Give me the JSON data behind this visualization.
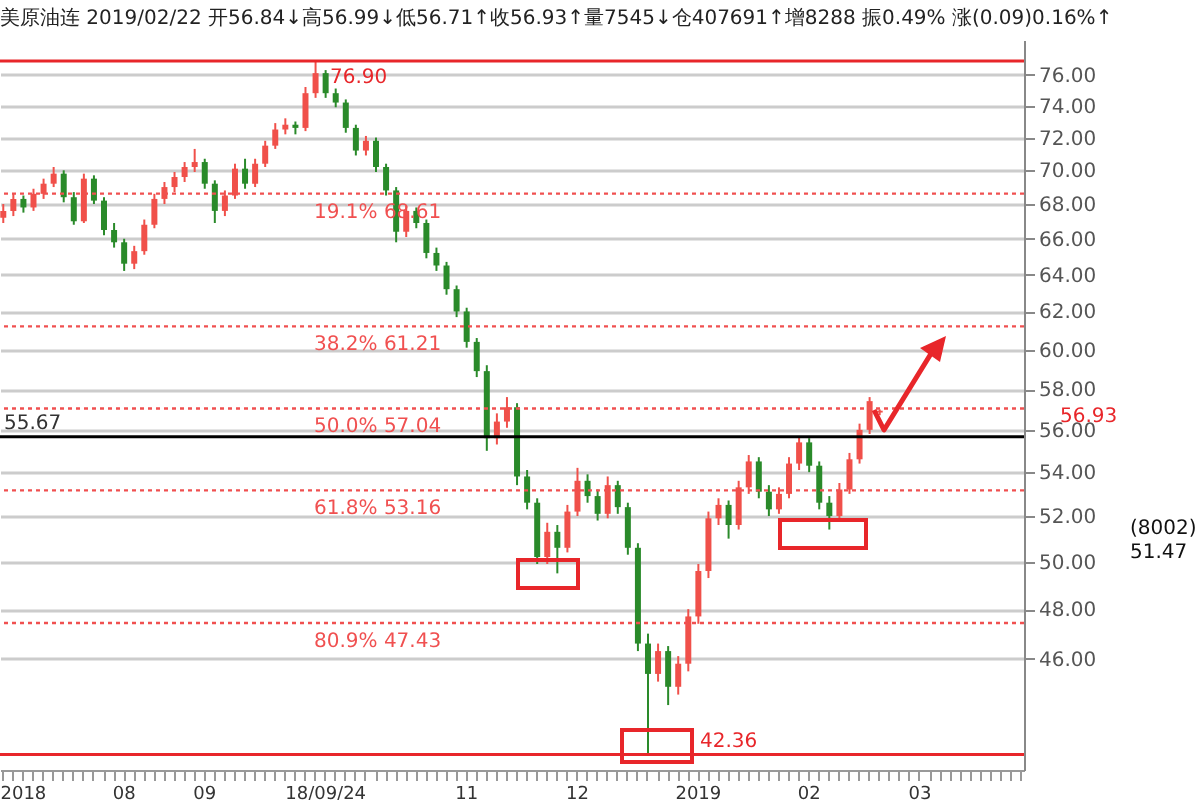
{
  "chart_data": {
    "type": "candlestick",
    "title": "美原油连 2019/02/22 开56.84↓高56.99↓低56.71↑收56.93↑量7545↓仓407691↑增8288 振0.49% 涨(0.09)0.16%↑",
    "categories": [
      null,
      null,
      "2018",
      null,
      null,
      null,
      null,
      null,
      null,
      null,
      null,
      null,
      "08",
      null,
      null,
      null,
      null,
      null,
      null,
      null,
      "09",
      null,
      null,
      null,
      null,
      null,
      null,
      null,
      null,
      null,
      null,
      null,
      "18/09/24",
      null,
      null,
      null,
      null,
      null,
      null,
      null,
      null,
      null,
      null,
      null,
      null,
      null,
      "11",
      null,
      null,
      null,
      null,
      null,
      null,
      null,
      null,
      null,
      null,
      "12",
      null,
      null,
      null,
      null,
      null,
      null,
      null,
      null,
      null,
      null,
      null,
      "2019",
      null,
      null,
      null,
      null,
      null,
      null,
      null,
      null,
      null,
      null,
      "02",
      null,
      null,
      null,
      null,
      null,
      null,
      null,
      null,
      null,
      null,
      "03",
      null,
      null,
      null,
      null,
      null,
      null,
      null,
      null,
      null,
      null
    ],
    "ohlc": [
      [
        67.2,
        68.0,
        66.9,
        67.6
      ],
      [
        67.6,
        68.6,
        67.3,
        68.3
      ],
      [
        68.3,
        68.5,
        67.5,
        67.8
      ],
      [
        67.8,
        68.9,
        67.6,
        68.6
      ],
      [
        68.6,
        69.5,
        68.3,
        69.2
      ],
      [
        69.2,
        70.2,
        69.0,
        69.8
      ],
      [
        69.8,
        70.0,
        68.1,
        68.4
      ],
      [
        68.4,
        68.7,
        66.8,
        67.0
      ],
      [
        67.0,
        69.8,
        66.9,
        69.5
      ],
      [
        69.5,
        69.7,
        68.0,
        68.2
      ],
      [
        68.2,
        68.4,
        66.2,
        66.5
      ],
      [
        66.5,
        66.9,
        65.5,
        65.8
      ],
      [
        65.8,
        66.0,
        64.2,
        64.6
      ],
      [
        64.6,
        65.6,
        64.3,
        65.3
      ],
      [
        65.3,
        67.1,
        65.1,
        66.8
      ],
      [
        66.8,
        68.6,
        66.6,
        68.3
      ],
      [
        68.3,
        69.3,
        68.0,
        69.0
      ],
      [
        69.0,
        69.9,
        68.7,
        69.6
      ],
      [
        69.6,
        70.5,
        69.3,
        70.2
      ],
      [
        70.2,
        71.3,
        69.9,
        70.5
      ],
      [
        70.5,
        70.7,
        68.9,
        69.2
      ],
      [
        69.2,
        69.4,
        66.9,
        67.6
      ],
      [
        67.6,
        68.8,
        67.3,
        68.5
      ],
      [
        68.5,
        70.4,
        68.3,
        70.1
      ],
      [
        70.1,
        70.7,
        68.9,
        69.2
      ],
      [
        69.2,
        70.7,
        69.0,
        70.4
      ],
      [
        70.4,
        71.8,
        70.2,
        71.5
      ],
      [
        71.5,
        72.9,
        71.3,
        72.5
      ],
      [
        72.5,
        73.2,
        72.2,
        72.8
      ],
      [
        72.8,
        73.0,
        72.2,
        72.6
      ],
      [
        72.6,
        75.2,
        72.4,
        74.8
      ],
      [
        74.8,
        76.9,
        74.5,
        76.1
      ],
      [
        76.1,
        76.3,
        74.5,
        74.8
      ],
      [
        74.8,
        75.1,
        73.9,
        74.2
      ],
      [
        74.2,
        74.4,
        72.3,
        72.6
      ],
      [
        72.6,
        72.8,
        70.9,
        71.2
      ],
      [
        71.2,
        72.1,
        70.9,
        71.8
      ],
      [
        71.8,
        72.0,
        69.9,
        70.2
      ],
      [
        70.2,
        70.4,
        68.5,
        68.8
      ],
      [
        68.8,
        69.0,
        65.8,
        66.4
      ],
      [
        66.4,
        67.9,
        66.1,
        67.6
      ],
      [
        67.6,
        67.8,
        66.6,
        66.9
      ],
      [
        66.9,
        67.1,
        64.9,
        65.2
      ],
      [
        65.2,
        65.5,
        64.2,
        64.5
      ],
      [
        64.5,
        64.7,
        62.9,
        63.2
      ],
      [
        63.2,
        63.4,
        61.7,
        62.0
      ],
      [
        62.0,
        62.2,
        60.1,
        60.4
      ],
      [
        60.4,
        60.6,
        58.6,
        58.9
      ],
      [
        58.9,
        59.2,
        55.0,
        55.6
      ],
      [
        55.6,
        56.8,
        55.3,
        56.4
      ],
      [
        56.4,
        57.6,
        56.1,
        57.1
      ],
      [
        57.1,
        57.3,
        53.4,
        53.8
      ],
      [
        53.8,
        54.1,
        52.3,
        52.6
      ],
      [
        52.6,
        52.8,
        49.9,
        50.2
      ],
      [
        50.2,
        51.7,
        49.9,
        51.3
      ],
      [
        51.3,
        51.6,
        49.5,
        50.6
      ],
      [
        50.6,
        52.5,
        50.4,
        52.2
      ],
      [
        52.2,
        54.2,
        52.0,
        53.6
      ],
      [
        53.6,
        53.9,
        52.6,
        52.9
      ],
      [
        52.9,
        53.2,
        51.8,
        52.1
      ],
      [
        52.1,
        53.8,
        51.9,
        53.4
      ],
      [
        53.4,
        53.6,
        52.1,
        52.4
      ],
      [
        52.4,
        52.6,
        50.3,
        50.6
      ],
      [
        50.6,
        50.8,
        46.3,
        46.6
      ],
      [
        46.6,
        47.0,
        42.36,
        45.4
      ],
      [
        45.4,
        46.6,
        45.1,
        46.3
      ],
      [
        46.3,
        46.5,
        44.2,
        44.9
      ],
      [
        44.9,
        46.1,
        44.6,
        45.8
      ],
      [
        45.8,
        48.0,
        45.5,
        47.7
      ],
      [
        47.7,
        49.9,
        47.4,
        49.6
      ],
      [
        49.6,
        52.2,
        49.3,
        51.9
      ],
      [
        51.9,
        52.8,
        51.6,
        52.5
      ],
      [
        52.5,
        52.7,
        51.0,
        51.6
      ],
      [
        51.6,
        53.6,
        51.4,
        53.3
      ],
      [
        53.3,
        54.8,
        53.0,
        54.5
      ],
      [
        54.5,
        54.7,
        52.8,
        53.1
      ],
      [
        53.1,
        53.4,
        52.0,
        52.3
      ],
      [
        52.3,
        53.3,
        52.1,
        53.0
      ],
      [
        53.0,
        54.7,
        52.8,
        54.4
      ],
      [
        54.4,
        55.7,
        54.1,
        55.4
      ],
      [
        55.4,
        55.6,
        54.0,
        54.3
      ],
      [
        54.3,
        54.5,
        52.3,
        52.6
      ],
      [
        52.6,
        52.9,
        51.4,
        52.0
      ],
      [
        52.0,
        53.5,
        51.8,
        53.2
      ],
      [
        53.2,
        54.9,
        53.0,
        54.6
      ],
      [
        54.6,
        56.3,
        54.4,
        56.0
      ],
      [
        56.0,
        57.6,
        55.8,
        57.4
      ],
      [
        56.84,
        56.99,
        56.71,
        56.93
      ],
      null,
      null,
      null,
      null,
      null,
      null,
      null,
      null,
      null,
      null,
      null,
      null,
      null,
      null
    ],
    "colors": [
      "#f0504a",
      "#f0504a",
      "#2a8a2a",
      "#f0504a",
      "#f0504a",
      "#f0504a",
      "#2a8a2a",
      "#2a8a2a",
      "#f0504a",
      "#2a8a2a",
      "#2a8a2a",
      "#2a8a2a",
      "#2a8a2a",
      "#f0504a",
      "#f0504a",
      "#f0504a",
      "#f0504a",
      "#f0504a",
      "#f0504a",
      "#f0504a",
      "#2a8a2a",
      "#2a8a2a",
      "#f0504a",
      "#f0504a",
      "#2a8a2a",
      "#f0504a",
      "#f0504a",
      "#f0504a",
      "#f0504a",
      "#2a8a2a",
      "#f0504a",
      "#f0504a",
      "#2a8a2a",
      "#2a8a2a",
      "#2a8a2a",
      "#2a8a2a",
      "#f0504a",
      "#2a8a2a",
      "#2a8a2a",
      "#2a8a2a",
      "#f0504a",
      "#2a8a2a",
      "#2a8a2a",
      "#2a8a2a",
      "#2a8a2a",
      "#2a8a2a",
      "#2a8a2a",
      "#2a8a2a",
      "#2a8a2a",
      "#f0504a",
      "#f0504a",
      "#2a8a2a",
      "#2a8a2a",
      "#2a8a2a",
      "#f0504a",
      "#2a8a2a",
      "#f0504a",
      "#f0504a",
      "#2a8a2a",
      "#2a8a2a",
      "#f0504a",
      "#2a8a2a",
      "#2a8a2a",
      "#2a8a2a",
      "#2a8a2a",
      "#f0504a",
      "#2a8a2a",
      "#f0504a",
      "#f0504a",
      "#f0504a",
      "#f0504a",
      "#f0504a",
      "#2a8a2a",
      "#f0504a",
      "#f0504a",
      "#2a8a2a",
      "#2a8a2a",
      "#f0504a",
      "#f0504a",
      "#f0504a",
      "#2a8a2a",
      "#2a8a2a",
      "#2a8a2a",
      "#f0504a",
      "#f0504a",
      "#f0504a",
      "#f0504a",
      "#f0504a",
      null,
      null,
      null,
      null,
      null,
      null,
      null,
      null,
      null,
      null,
      null,
      null,
      null,
      null
    ],
    "ylim": [
      41.8,
      78.3
    ],
    "yticks": [
      {
        "value": 46,
        "label": "46.00"
      },
      {
        "value": 48,
        "label": "48.00"
      },
      {
        "value": 50,
        "label": "50.00"
      },
      {
        "value": 52,
        "label": "52.00"
      },
      {
        "value": 54,
        "label": "54.00"
      },
      {
        "value": 56,
        "label": "56.00"
      },
      {
        "value": 58,
        "label": "58.00"
      },
      {
        "value": 60,
        "label": "60.00"
      },
      {
        "value": 62,
        "label": "62.00"
      },
      {
        "value": 64,
        "label": "64.00"
      },
      {
        "value": 66,
        "label": "66.00"
      },
      {
        "value": 68,
        "label": "68.00"
      },
      {
        "value": 70,
        "label": "70.00"
      },
      {
        "value": 72,
        "label": "72.00"
      },
      {
        "value": 74,
        "label": "74.00"
      },
      {
        "value": 76,
        "label": "76.00"
      }
    ],
    "log": "y",
    "grid": "y",
    "ref_lines": [
      {
        "axis": "y",
        "value": 76.9,
        "label": "76.90",
        "color": "#e8262a",
        "line_style": "solid"
      },
      {
        "axis": "y",
        "value": 68.61,
        "label": "19.1% 68.61",
        "color": "#f05050",
        "line_style": "dotted"
      },
      {
        "axis": "y",
        "value": 61.21,
        "label": "38.2% 61.21",
        "color": "#f05050",
        "line_style": "dotted"
      },
      {
        "axis": "y",
        "value": 57.04,
        "label": "50.0% 57.04",
        "color": "#f05050",
        "line_style": "dotted"
      },
      {
        "axis": "y",
        "value": 53.16,
        "label": "61.8% 53.16",
        "color": "#f05050",
        "line_style": "dotted"
      },
      {
        "axis": "y",
        "value": 47.43,
        "label": "80.9% 47.43",
        "color": "#f05050",
        "line_style": "dotted"
      },
      {
        "axis": "y",
        "value": 42.36,
        "label": "42.36",
        "color": "#e8262a",
        "line_style": "solid"
      },
      {
        "axis": "y",
        "value": 55.67,
        "label": "55.67",
        "color": "#000000",
        "line_style": "solid"
      }
    ],
    "annotations": [
      "56.93",
      "(8002)\n51.47"
    ]
  }
}
